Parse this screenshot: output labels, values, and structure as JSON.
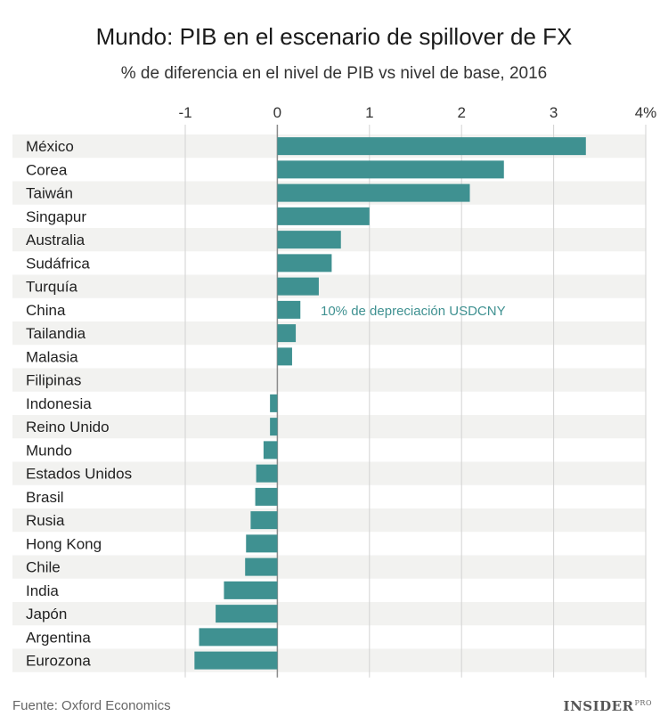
{
  "chart_data": {
    "type": "bar",
    "orientation": "horizontal",
    "title": "Mundo: PIB en el escenario de spillover de FX",
    "subtitle": "% de diferencia en el nivel de PIB vs nivel de base, 2016",
    "categories": [
      "México",
      "Corea",
      "Taiwán",
      "Singapur",
      "Australia",
      "Sudáfrica",
      "Turquía",
      "China",
      "Tailandia",
      "Malasia",
      "Filipinas",
      "Indonesia",
      "Reino Unido",
      "Mundo",
      "Estados Unidos",
      "Brasil",
      "Rusia",
      "Hong Kong",
      "Chile",
      "India",
      "Japón",
      "Argentina",
      "Eurozona"
    ],
    "values": [
      3.35,
      2.46,
      2.09,
      1.0,
      0.69,
      0.59,
      0.45,
      0.25,
      0.2,
      0.16,
      0.0,
      -0.08,
      -0.08,
      -0.15,
      -0.23,
      -0.24,
      -0.29,
      -0.34,
      -0.35,
      -0.58,
      -0.67,
      -0.85,
      -0.9
    ],
    "xlim": [
      -1,
      4
    ],
    "xticks": [
      -1,
      0,
      1,
      2,
      3,
      4
    ],
    "xtick_labels": [
      "-1",
      "0",
      "1",
      "2",
      "3",
      "4%"
    ],
    "annotation": {
      "text": "10% de depreciación USDCNY",
      "category": "China"
    },
    "bar_color": "#3f9191",
    "grid": true
  },
  "source": "Fuente: Oxford Economics",
  "brand": {
    "name": "INSIDER",
    "suffix": "PRO"
  }
}
